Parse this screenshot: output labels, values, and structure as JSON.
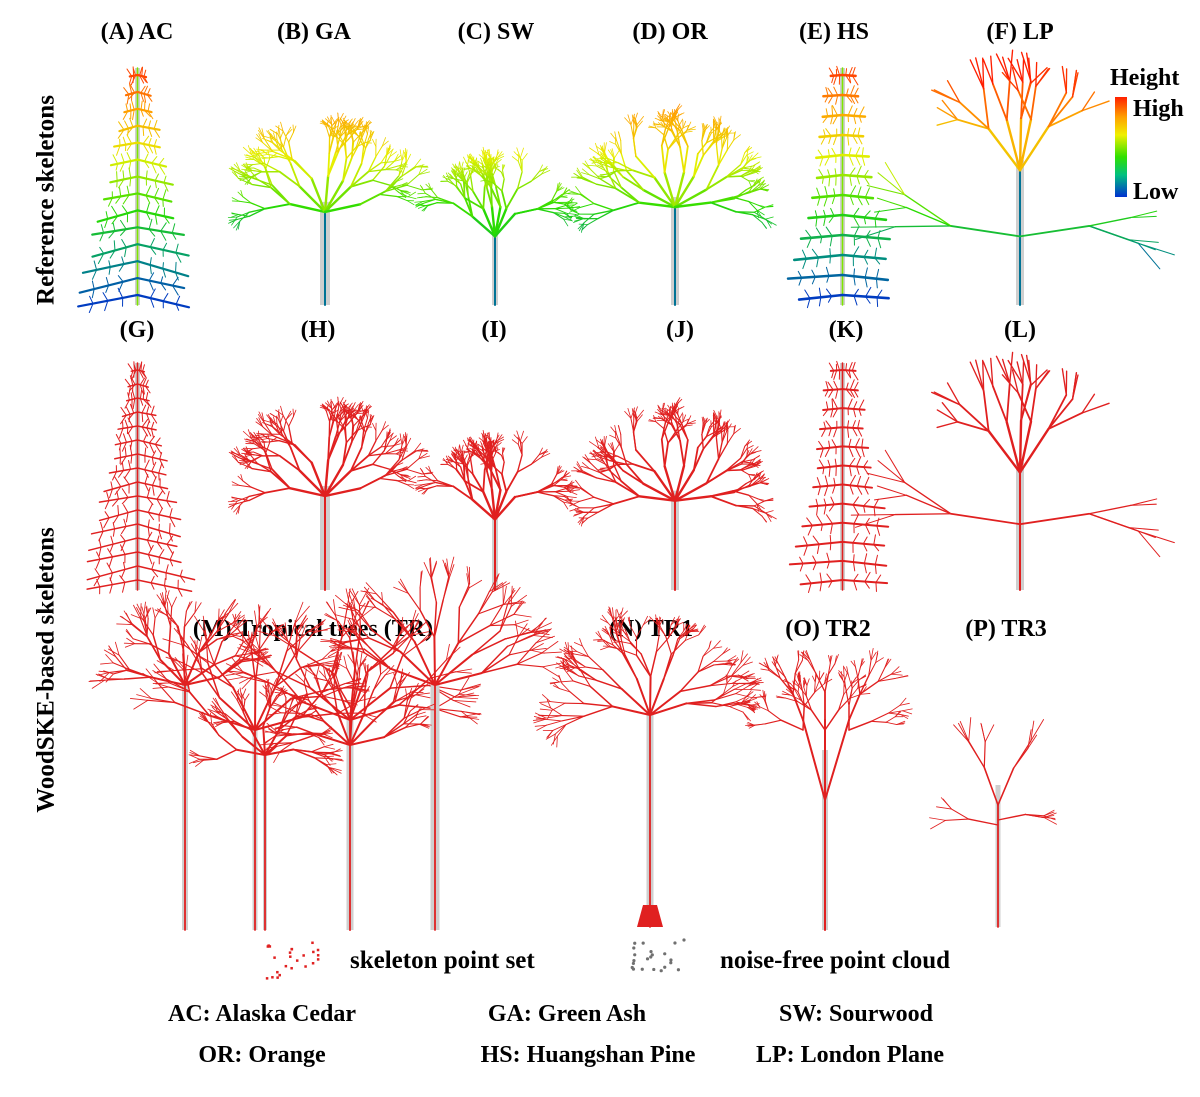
{
  "row_labels": {
    "reference": "Reference skeletons",
    "woodske": "WoodSKE-based skeletons"
  },
  "panels": {
    "A": "(A) AC",
    "B": "(B) GA",
    "C": "(C) SW",
    "D": "(D) OR",
    "E": "(E) HS",
    "F": "(F) LP",
    "G": "(G)",
    "H": "(H)",
    "I": "(I)",
    "J": "(J)",
    "K": "(K)",
    "L": "(L)",
    "M": "(M) Tropical trees (TR)",
    "N": "(N) TR1",
    "O": "(O) TR2",
    "P": "(P) TR3"
  },
  "colorbar": {
    "title": "Height",
    "high": "High",
    "low": "Low"
  },
  "legend": {
    "skeleton": "skeleton point set",
    "cloud": "noise-free point cloud"
  },
  "abbreviations": [
    "AC: Alaska Cedar",
    "GA: Green Ash",
    "SW: Sourwood",
    "OR: Orange",
    "HS: Huangshan Pine",
    "LP: London Plane"
  ],
  "colors": {
    "skeleton": "#e02020",
    "cloud": "#c8c8c8",
    "legend_cloud": "#707070"
  }
}
